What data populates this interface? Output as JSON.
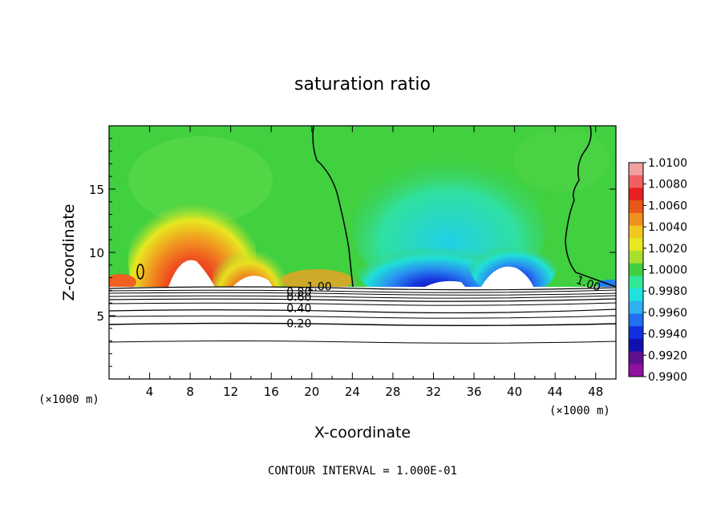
{
  "chart_data": {
    "type": "heatmap",
    "title": "saturation ratio",
    "xlabel": "X-coordinate",
    "ylabel": "Z-coordinate",
    "x_unit": "(×1000 m)",
    "y_unit": "(×1000 m)",
    "footer": "CONTOUR INTERVAL = 1.000E-01",
    "xlim": [
      0,
      50
    ],
    "ylim": [
      0,
      20
    ],
    "xticks": [
      4,
      8,
      12,
      16,
      20,
      24,
      28,
      32,
      36,
      40,
      44,
      48
    ],
    "yticks": [
      5,
      10,
      15
    ],
    "colorbar": {
      "levels": [
        "1.0100",
        "1.0080",
        "1.0060",
        "1.0040",
        "1.0020",
        "1.0000",
        "0.9980",
        "0.9960",
        "0.9940",
        "0.9920",
        "0.9900"
      ],
      "colors": [
        "#f0a0a0",
        "#f06060",
        "#e82020",
        "#e85818",
        "#f09020",
        "#f0c820",
        "#e8e820",
        "#a8e030",
        "#40d040",
        "#30e898",
        "#20e0e0",
        "#30b0f0",
        "#2070f0",
        "#1030e0",
        "#1010b0",
        "#601090",
        "#9010a0"
      ]
    },
    "contour_labels": [
      {
        "text": "1.00",
        "x": 19.5,
        "y": 7.3
      },
      {
        "text": "0.80",
        "x": 17.5,
        "y": 6.9
      },
      {
        "text": "0.60",
        "x": 17.5,
        "y": 6.5
      },
      {
        "text": "0.40",
        "x": 17.5,
        "y": 5.6
      },
      {
        "text": "0.20",
        "x": 17.5,
        "y": 4.4
      },
      {
        "text": "1.00",
        "x": 46.0,
        "y": 7.9
      }
    ]
  }
}
